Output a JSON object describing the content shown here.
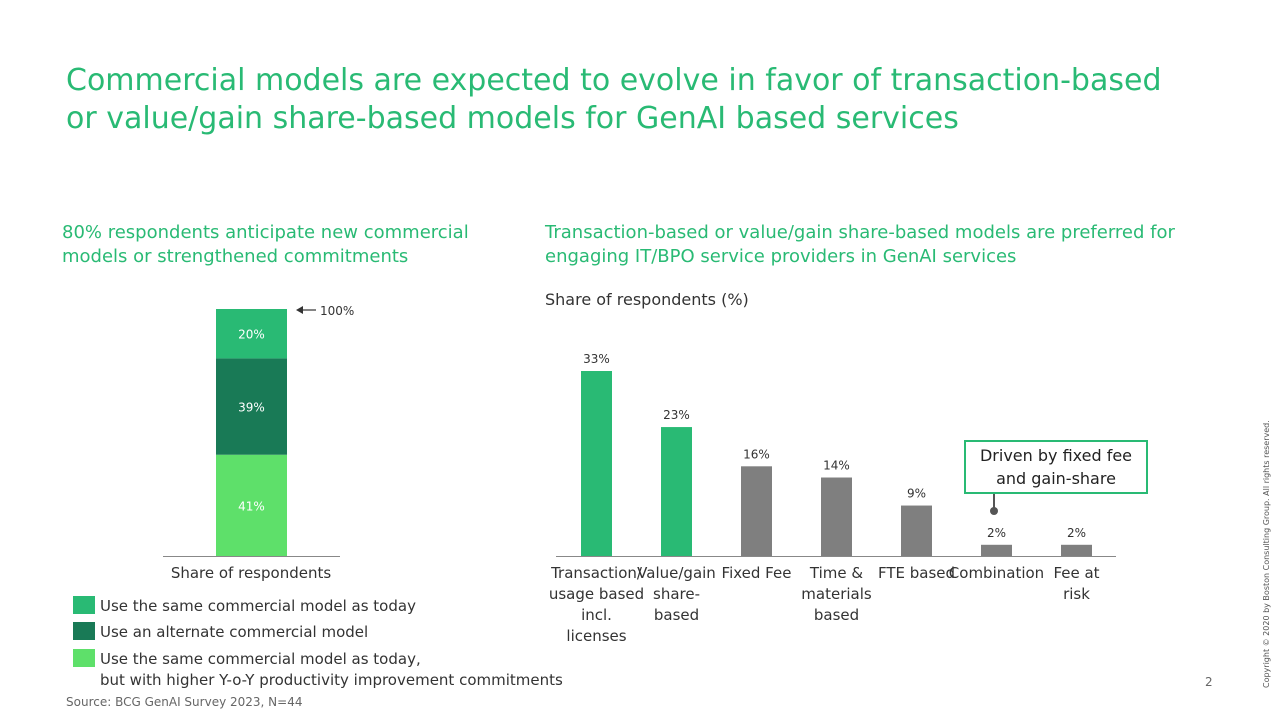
{
  "title": "Commercial models are expected to evolve in favor of transaction-based or value/gain share-based models for GenAI based services",
  "left_panel": {
    "heading": "80% respondents anticipate  new commercial models or strengthened commitments",
    "x_label": "Share of respondents",
    "total_label": "100%"
  },
  "right_panel": {
    "heading": "Transaction-based or value/gain share-based models are preferred for engaging IT/BPO service providers in GenAI services",
    "y_caption": "Share of respondents (%)",
    "callout": "Driven by fixed fee and gain-share"
  },
  "legend": [
    {
      "label": "Use the same commercial model as today",
      "color": "#29ba74"
    },
    {
      "label": "Use an alternate commercial model",
      "color": "#197a56"
    },
    {
      "label_line1": "Use the same commercial model as today,",
      "label_line2": "but with higher Y-o-Y productivity improvement commitments",
      "color": "#5ee06a"
    }
  ],
  "source": "Source: BCG GenAI Survey 2023, N=44",
  "page_number": "2",
  "copyright": "Copyright © 2020 by Boston Consulting Group. All rights reserved.",
  "chart_data": [
    {
      "type": "bar",
      "stacked": true,
      "categories": [
        "Share of respondents"
      ],
      "series": [
        {
          "name": "Use the same commercial model as today, but with higher Y-o-Y productivity improvement commitments",
          "values": [
            41
          ],
          "label": "41%",
          "color": "#5ee06a"
        },
        {
          "name": "Use an alternate commercial model",
          "values": [
            39
          ],
          "label": "39%",
          "color": "#197a56"
        },
        {
          "name": "Use the same commercial model as today",
          "values": [
            20
          ],
          "label": "20%",
          "color": "#29ba74"
        }
      ],
      "ylim": [
        0,
        100
      ]
    },
    {
      "type": "bar",
      "categories": [
        [
          "Transaction/",
          "usage based",
          "incl.",
          "licenses"
        ],
        [
          "Value/gain",
          "share-",
          "based"
        ],
        [
          "Fixed Fee"
        ],
        [
          "Time &",
          "materials",
          "based"
        ],
        [
          "FTE based"
        ],
        [
          "Combination"
        ],
        [
          "Fee at",
          "risk"
        ]
      ],
      "values": [
        33,
        23,
        16,
        14,
        9,
        2,
        2
      ],
      "value_labels": [
        "33%",
        "23%",
        "16%",
        "14%",
        "9%",
        "2%",
        "2%"
      ],
      "colors": [
        "#29ba74",
        "#29ba74",
        "#7f7f7f",
        "#7f7f7f",
        "#7f7f7f",
        "#7f7f7f",
        "#7f7f7f"
      ],
      "ylabel": "Share of respondents (%)",
      "ylim": [
        0,
        33
      ]
    }
  ]
}
